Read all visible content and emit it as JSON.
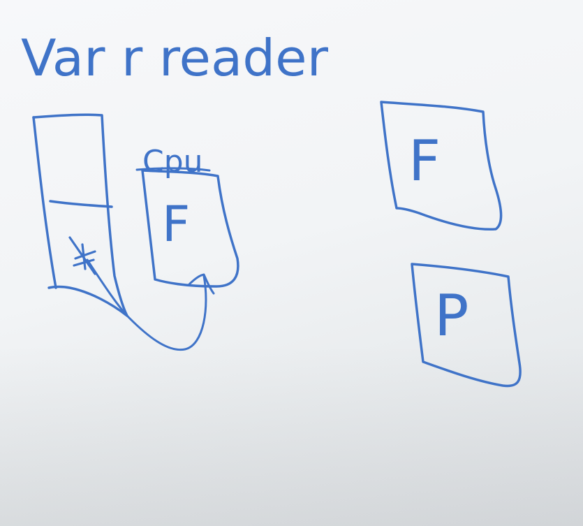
{
  "whiteboard": {
    "ink_color": "#3f73c8",
    "title": "Var r reader",
    "labels": {
      "cpu": "Cpu",
      "copy_box": "F",
      "box_f": "F",
      "box_p": "P",
      "pointer_mark": "*"
    }
  }
}
